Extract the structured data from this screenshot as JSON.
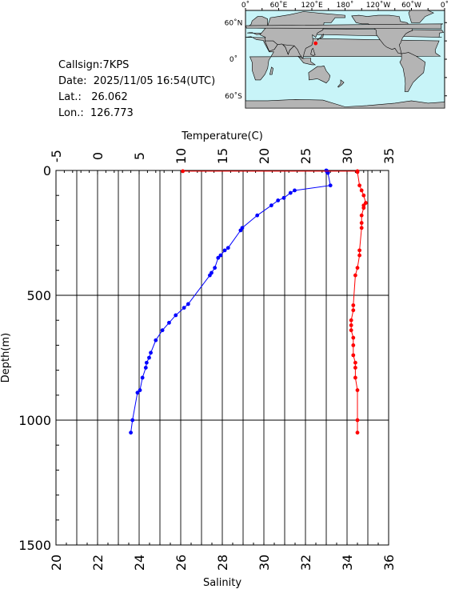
{
  "station": {
    "callsign_label": "Callsign:",
    "callsign": "7KPS",
    "date_label": "Date:",
    "date": "2025/11/05 16:54(UTC)",
    "lat_label": "Lat.:",
    "lat": "26.062",
    "lon_label": "Lon.:",
    "lon": "126.773"
  },
  "map": {
    "top_labels": [
      "0˚",
      "60˚E",
      "120˚E",
      "180˚",
      "120˚W",
      "60˚W",
      "0˚"
    ],
    "right_labels": [
      "60˚N",
      "0˚",
      "60˚S"
    ],
    "ocean_color": "#c8f4f8",
    "land_color": "#b4b4b4",
    "marker_color": "#ff0000"
  },
  "chart_data": {
    "type": "scatter",
    "top_axis": {
      "label": "Temperature(C)",
      "range": [
        -5,
        35
      ],
      "ticks": [
        "-5",
        "0",
        "5",
        "10",
        "15",
        "20",
        "25",
        "30",
        "35"
      ]
    },
    "bottom_axis": {
      "label": "Salinity",
      "range": [
        20,
        36
      ],
      "ticks": [
        "20",
        "22",
        "24",
        "26",
        "28",
        "30",
        "32",
        "34",
        "36"
      ]
    },
    "left_axis": {
      "label": "Depth(m)",
      "range": [
        0,
        1500
      ],
      "inverted": true,
      "ticks": [
        "0",
        "500",
        "1000",
        "1500"
      ]
    },
    "grid": true,
    "series": [
      {
        "color": "#0000ff",
        "axis": "temperature",
        "points": [
          [
            27.5,
            0
          ],
          [
            27.6,
            3
          ],
          [
            27.6,
            6
          ],
          [
            27.7,
            10
          ],
          [
            28.0,
            60
          ],
          [
            23.7,
            80
          ],
          [
            23.2,
            90
          ],
          [
            22.4,
            110
          ],
          [
            21.7,
            120
          ],
          [
            20.9,
            140
          ],
          [
            19.2,
            180
          ],
          [
            17.4,
            230
          ],
          [
            17.2,
            240
          ],
          [
            15.7,
            310
          ],
          [
            15.3,
            320
          ],
          [
            14.8,
            340
          ],
          [
            14.5,
            350
          ],
          [
            14.1,
            390
          ],
          [
            13.7,
            410
          ],
          [
            13.5,
            420
          ],
          [
            10.9,
            535
          ],
          [
            10.4,
            550
          ],
          [
            9.4,
            580
          ],
          [
            8.6,
            610
          ],
          [
            7.8,
            640
          ],
          [
            7.0,
            680
          ],
          [
            6.4,
            730
          ],
          [
            6.2,
            750
          ],
          [
            5.9,
            770
          ],
          [
            5.8,
            790
          ],
          [
            5.4,
            830
          ],
          [
            5.1,
            880
          ],
          [
            4.8,
            890
          ],
          [
            4.2,
            1000
          ],
          [
            4.0,
            1050
          ]
        ]
      },
      {
        "color": "#ff0000",
        "axis": "salinity",
        "points": [
          [
            26.1,
            3
          ],
          [
            34.5,
            3
          ],
          [
            34.5,
            6
          ],
          [
            34.6,
            60
          ],
          [
            34.7,
            80
          ],
          [
            34.8,
            100
          ],
          [
            34.9,
            130
          ],
          [
            34.8,
            140
          ],
          [
            34.8,
            150
          ],
          [
            34.7,
            180
          ],
          [
            34.7,
            210
          ],
          [
            34.7,
            230
          ],
          [
            34.6,
            320
          ],
          [
            34.6,
            340
          ],
          [
            34.5,
            390
          ],
          [
            34.4,
            420
          ],
          [
            34.3,
            540
          ],
          [
            34.3,
            560
          ],
          [
            34.2,
            600
          ],
          [
            34.2,
            620
          ],
          [
            34.2,
            640
          ],
          [
            34.3,
            670
          ],
          [
            34.3,
            700
          ],
          [
            34.3,
            740
          ],
          [
            34.4,
            770
          ],
          [
            34.4,
            790
          ],
          [
            34.4,
            830
          ],
          [
            34.5,
            880
          ],
          [
            34.5,
            1000
          ],
          [
            34.5,
            1050
          ]
        ]
      }
    ]
  }
}
